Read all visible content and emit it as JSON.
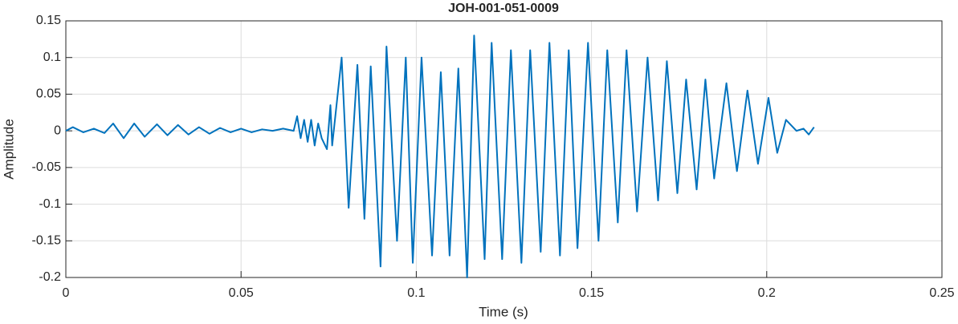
{
  "chart_data": {
    "type": "line",
    "title": "JOH-001-051-0009",
    "x_label": "Time (s)",
    "y_label": "Amplitude",
    "color": "#0072bd",
    "grid": true,
    "xlim": [
      0,
      0.25
    ],
    "ylim": [
      -0.2,
      0.15
    ],
    "xticks": [
      0,
      0.05,
      0.1,
      0.15,
      0.2,
      0.25
    ],
    "yticks": [
      -0.2,
      -0.15,
      -0.1,
      -0.05,
      0,
      0.05,
      0.1,
      0.15
    ],
    "x": [
      0,
      0.002,
      0.005,
      0.008,
      0.011,
      0.0135,
      0.0165,
      0.0195,
      0.0225,
      0.026,
      0.029,
      0.032,
      0.035,
      0.038,
      0.041,
      0.044,
      0.047,
      0.05,
      0.053,
      0.056,
      0.059,
      0.062,
      0.065,
      0.066,
      0.067,
      0.068,
      0.069,
      0.07,
      0.071,
      0.072,
      0.073,
      0.0745,
      0.0755,
      0.076,
      0.0787,
      0.0807,
      0.0832,
      0.0852,
      0.087,
      0.0898,
      0.0915,
      0.0945,
      0.097,
      0.099,
      0.1015,
      0.1045,
      0.107,
      0.1095,
      0.112,
      0.1145,
      0.1165,
      0.1195,
      0.1215,
      0.1245,
      0.127,
      0.13,
      0.1325,
      0.1355,
      0.138,
      0.141,
      0.1435,
      0.146,
      0.149,
      0.152,
      0.1545,
      0.1575,
      0.16,
      0.163,
      0.166,
      0.169,
      0.1715,
      0.1745,
      0.177,
      0.18,
      0.1825,
      0.185,
      0.1885,
      0.1915,
      0.1945,
      0.1975,
      0.2005,
      0.203,
      0.2055,
      0.2085,
      0.2105,
      0.212,
      0.2135
    ],
    "values": [
      0,
      0.005,
      -0.002,
      0.003,
      -0.003,
      0.01,
      -0.01,
      0.01,
      -0.008,
      0.009,
      -0.006,
      0.008,
      -0.005,
      0.005,
      -0.004,
      0.004,
      -0.002,
      0.003,
      -0.002,
      0.002,
      0,
      0.003,
      0,
      0.02,
      -0.01,
      0.015,
      -0.015,
      0.015,
      -0.02,
      0.01,
      -0.01,
      -0.025,
      0.035,
      -0.02,
      0.1,
      -0.105,
      0.09,
      -0.12,
      0.088,
      -0.185,
      0.115,
      -0.15,
      0.1,
      -0.18,
      0.1,
      -0.17,
      0.08,
      -0.17,
      0.085,
      -0.2,
      0.13,
      -0.175,
      0.12,
      -0.175,
      0.11,
      -0.18,
      0.11,
      -0.165,
      0.12,
      -0.17,
      0.11,
      -0.16,
      0.12,
      -0.15,
      0.11,
      -0.125,
      0.11,
      -0.11,
      0.1,
      -0.095,
      0.095,
      -0.085,
      0.07,
      -0.08,
      0.07,
      -0.065,
      0.065,
      -0.055,
      0.055,
      -0.045,
      0.045,
      -0.03,
      0.015,
      0,
      0.003,
      -0.005,
      0.005
    ]
  }
}
